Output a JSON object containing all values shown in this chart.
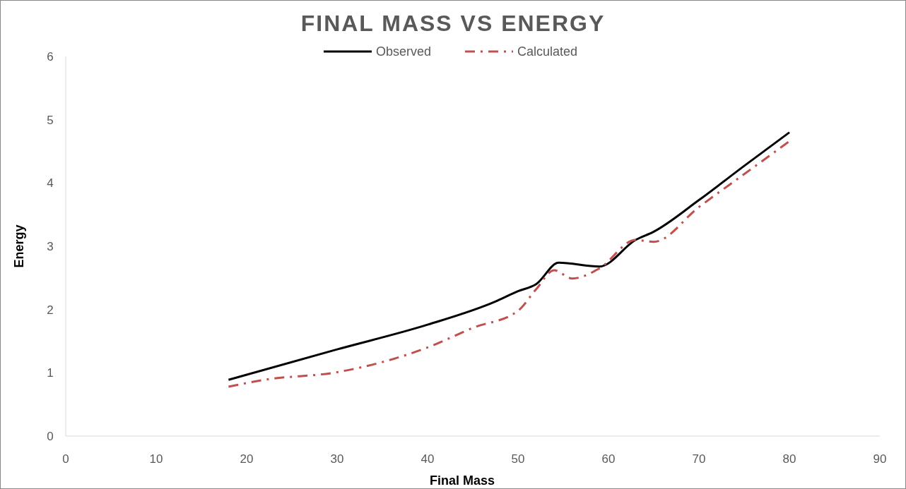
{
  "chart_data": {
    "type": "line",
    "title": "FINAL MASS VS ENERGY",
    "xlabel": "Final Mass",
    "ylabel": "Energy",
    "xlim": [
      0,
      90
    ],
    "xticks": [
      0,
      10,
      20,
      30,
      40,
      50,
      60,
      70,
      80,
      90
    ],
    "ylim": [
      0,
      6
    ],
    "yticks": [
      0,
      1,
      2,
      3,
      4,
      5,
      6
    ],
    "legend": "top",
    "grid": false,
    "marker": "none",
    "series": [
      {
        "name": "Observed",
        "color": "#000000",
        "line_style": "solid",
        "x": [
          18,
          30,
          40,
          47.4,
          50,
          52,
          54.5,
          59,
          63,
          65,
          70,
          75,
          80
        ],
        "values": [
          0.89,
          1.37,
          1.76,
          2.12,
          2.29,
          2.4,
          2.74,
          2.68,
          3.1,
          3.23,
          3.73,
          4.27,
          4.8
        ]
      },
      {
        "name": "Calculated",
        "color": "#c0504d",
        "line_style": "dashed",
        "x": [
          18,
          22,
          30,
          35,
          40,
          45,
          50,
          52,
          54,
          56,
          59,
          63,
          65,
          70,
          75,
          80
        ],
        "values": [
          0.78,
          0.89,
          1.01,
          1.17,
          1.4,
          1.71,
          1.98,
          2.32,
          2.62,
          2.49,
          2.65,
          3.1,
          3.07,
          3.62,
          4.14,
          4.66
        ]
      }
    ]
  }
}
